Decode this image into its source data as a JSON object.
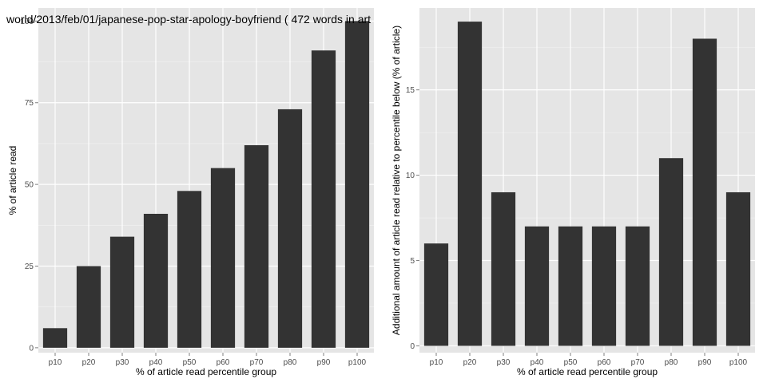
{
  "figure": {
    "title": "world/2013/feb/01/japanese-pop-star-apology-boyfriend ( 472 words in art"
  },
  "colors": {
    "panel_bg": "#e5e5e5",
    "grid_major": "#ffffff",
    "grid_minor": "#f2f2f2",
    "bar": "#333333"
  },
  "chart_data": [
    {
      "type": "bar",
      "categories": [
        "p10",
        "p20",
        "p30",
        "p40",
        "p50",
        "p60",
        "p70",
        "p80",
        "p90",
        "p100"
      ],
      "values": [
        6,
        25,
        34,
        41,
        48,
        55,
        62,
        73,
        91,
        100
      ],
      "xlabel": "% of article read percentile group",
      "ylabel": "% of article read",
      "ylim": [
        -1.5,
        104
      ],
      "yticks": [
        0,
        25,
        50,
        75,
        100
      ],
      "grid": true
    },
    {
      "type": "bar",
      "categories": [
        "p10",
        "p20",
        "p30",
        "p40",
        "p50",
        "p60",
        "p70",
        "p80",
        "p90",
        "p100"
      ],
      "values": [
        6,
        19,
        9,
        7,
        7,
        7,
        7,
        11,
        18,
        9
      ],
      "xlabel": "% of article read percentile group",
      "ylabel": "Additional amount of article read relative to percentile below (% of article)",
      "ylim": [
        -0.4,
        19.8
      ],
      "yticks": [
        0,
        5,
        10,
        15
      ],
      "grid": true
    }
  ]
}
